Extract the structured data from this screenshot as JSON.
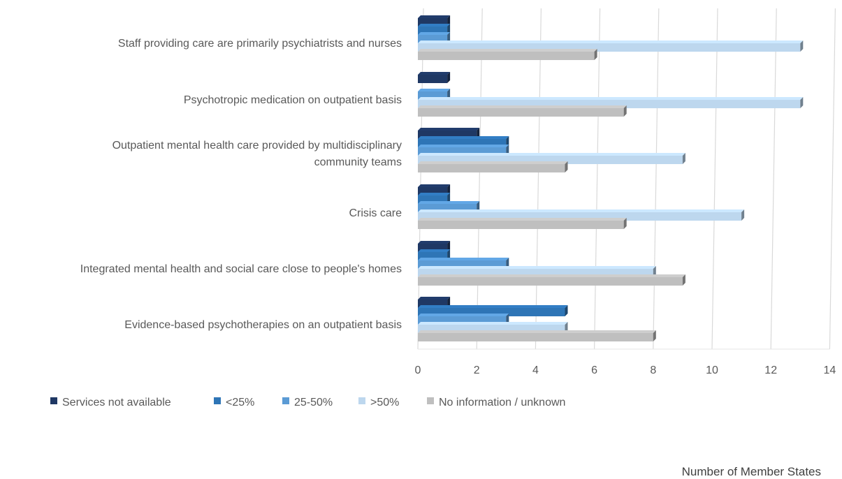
{
  "chart_data": {
    "type": "bar",
    "orientation": "horizontal",
    "style": "3d-clustered",
    "categories": [
      "Staff providing care are primarily psychiatrists and nurses",
      "Psychotropic medication on outpatient basis",
      [
        "Outpatient mental health care provided by multidisciplinary",
        "community teams"
      ],
      "Crisis care",
      "Integrated mental health and social care close to people's homes",
      "Evidence-based psychotherapies on an outpatient basis"
    ],
    "series": [
      {
        "name": "Services not available",
        "color": "#1f3864",
        "values": [
          1,
          1,
          2,
          1,
          1,
          1
        ]
      },
      {
        "name": "<25%",
        "color": "#2e75b6",
        "values": [
          1,
          0,
          3,
          1,
          1,
          5
        ]
      },
      {
        "name": "25-50%",
        "color": "#5b9bd5",
        "values": [
          1,
          1,
          3,
          2,
          3,
          3
        ]
      },
      {
        "name": ">50%",
        "color": "#bdd7ee",
        "values": [
          13,
          13,
          9,
          11,
          8,
          5
        ]
      },
      {
        "name": "No information / unknown",
        "color": "#bfbfbf",
        "values": [
          6,
          7,
          5,
          7,
          9,
          8
        ]
      }
    ],
    "xlim": [
      0,
      14
    ],
    "xticks": [
      "0",
      "2",
      "4",
      "6",
      "8",
      "10",
      "12",
      "14"
    ],
    "xlabel": "Number of Member States",
    "grid": true,
    "legend_position": "bottom"
  }
}
